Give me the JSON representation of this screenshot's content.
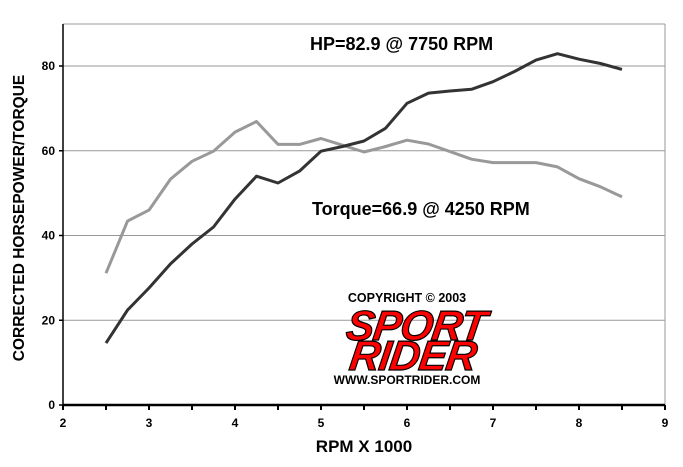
{
  "chart_data": {
    "type": "line",
    "title": "",
    "xlabel": "RPM X 1000",
    "ylabel": "CORRECTED HORSEPOWER/TORQUE",
    "xlim": [
      2,
      9
    ],
    "ylim": [
      0,
      90
    ],
    "x_ticks": [
      "2",
      "3",
      "4",
      "5",
      "6",
      "7",
      "8",
      "9"
    ],
    "y_ticks": [
      "0",
      "20",
      "40",
      "60",
      "80"
    ],
    "grid": "horizontal",
    "x": [
      2.5,
      2.75,
      3.0,
      3.25,
      3.5,
      3.75,
      4.0,
      4.25,
      4.5,
      4.75,
      5.0,
      5.25,
      5.5,
      5.75,
      6.0,
      6.25,
      6.5,
      6.75,
      7.0,
      7.25,
      7.5,
      7.75,
      8.0,
      8.25,
      8.5
    ],
    "series": [
      {
        "name": "Horsepower",
        "color": "#333333",
        "values": [
          14.6,
          22.4,
          27.6,
          33.3,
          38.0,
          42.0,
          48.6,
          54.0,
          52.4,
          55.2,
          59.9,
          61.0,
          62.3,
          65.3,
          71.2,
          73.6,
          74.1,
          74.5,
          76.3,
          78.7,
          81.4,
          82.9,
          81.6,
          80.6,
          79.2
        ]
      },
      {
        "name": "Torque",
        "color": "#999999",
        "values": [
          31.1,
          43.4,
          46.0,
          53.3,
          57.5,
          59.9,
          64.4,
          66.9,
          61.5,
          61.5,
          62.9,
          61.3,
          59.7,
          61.0,
          62.5,
          61.6,
          59.8,
          58.0,
          57.2,
          57.2,
          57.2,
          56.2,
          53.4,
          51.5,
          49.1
        ]
      }
    ],
    "annotations": [
      {
        "text": "HP=82.9 @ 7750 RPM"
      },
      {
        "text": "Torque=66.9 @ 4250 RPM"
      }
    ],
    "legend": "none"
  },
  "logo": {
    "copyright": "COPYRIGHT © 2003",
    "line1": "SPORT",
    "line2": "RIDER",
    "url": "WWW.SPORTRIDER.COM",
    "color": "#ff0000"
  }
}
